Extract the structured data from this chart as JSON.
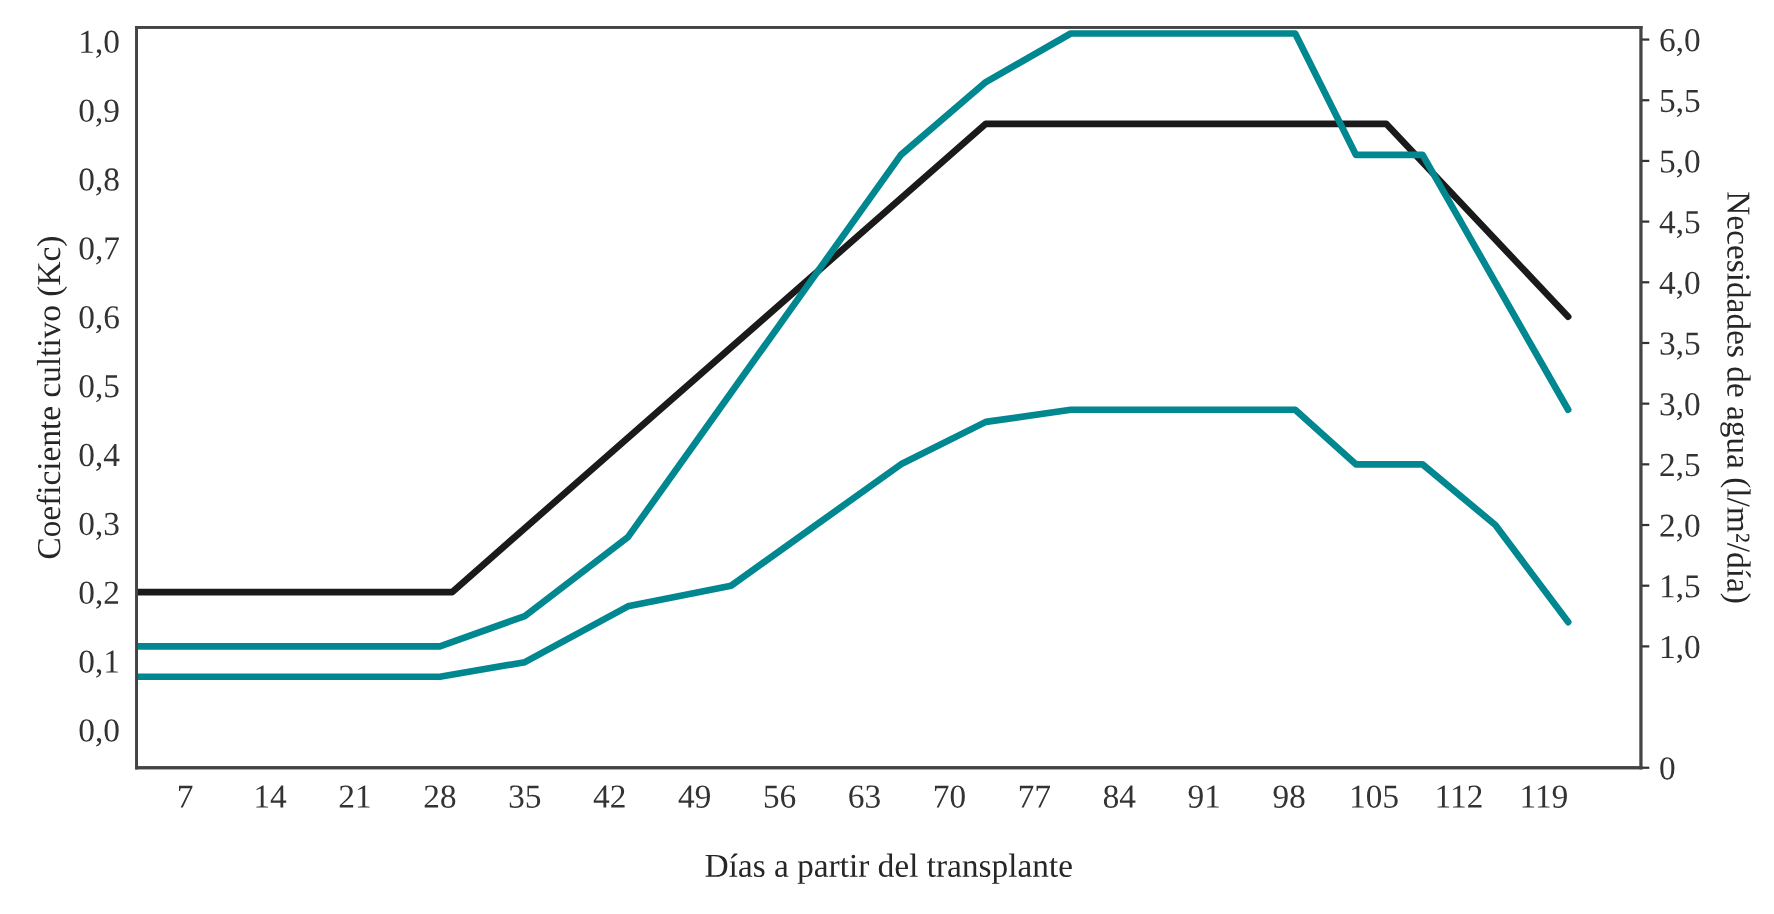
{
  "chart_data": {
    "type": "line",
    "xlabel": "Días a partir del transplante",
    "ylabel": "Coeficiente cultivo (Kc)",
    "y2label": "Necesidades de agua (l/m²/día)",
    "xlim": [
      3,
      127
    ],
    "xticks": [
      7,
      14,
      21,
      28,
      35,
      42,
      49,
      56,
      63,
      70,
      77,
      84,
      91,
      98,
      105,
      112,
      119
    ],
    "ylim": [
      -0.055,
      1.02
    ],
    "yticks": [
      {
        "value": 0.0,
        "label": "0,0"
      },
      {
        "value": 0.1,
        "label": "0,1"
      },
      {
        "value": 0.2,
        "label": "0,2"
      },
      {
        "value": 0.3,
        "label": "0,3"
      },
      {
        "value": 0.4,
        "label": "0,4"
      },
      {
        "value": 0.5,
        "label": "0,5"
      },
      {
        "value": 0.6,
        "label": "0,6"
      },
      {
        "value": 0.7,
        "label": "0,7"
      },
      {
        "value": 0.8,
        "label": "0,8"
      },
      {
        "value": 0.9,
        "label": "0,9"
      },
      {
        "value": 1.0,
        "label": "1,0"
      }
    ],
    "y2lim": [
      0,
      6.1
    ],
    "y2ticks": [
      0,
      {
        "value": 1.0,
        "label": "1,0"
      },
      {
        "value": 1.5,
        "label": "1,5"
      },
      {
        "value": 2.0,
        "label": "2,0"
      },
      {
        "value": 2.5,
        "label": "2,5"
      },
      {
        "value": 3.0,
        "label": "3,0"
      },
      {
        "value": 3.5,
        "label": "3,5"
      },
      {
        "value": 4.0,
        "label": "4,0"
      },
      {
        "value": 4.5,
        "label": "4,5"
      },
      {
        "value": 5.0,
        "label": "5,0"
      },
      {
        "value": 5.5,
        "label": "5,5"
      },
      {
        "value": 6.0,
        "label": "6,0"
      }
    ],
    "grid": false,
    "line_style": "solid",
    "series": [
      {
        "color": "#1a1a1a",
        "x": [
          3,
          29,
          73,
          106,
          121
        ],
        "values": [
          0.2,
          0.2,
          0.88,
          0.88,
          0.6
        ]
      },
      {
        "color": "#00878f",
        "axis": "y2",
        "x": [
          3,
          28,
          35,
          43.5,
          51,
          66,
          73,
          80,
          98.5,
          103.5,
          109,
          121
        ],
        "values": [
          1.0,
          1.0,
          1.25,
          1.9,
          2.95,
          5.05,
          5.65,
          6.05,
          6.05,
          5.05,
          5.05,
          2.95
        ]
      },
      {
        "color": "#00878f",
        "axis": "y2",
        "x": [
          3,
          28,
          35,
          43.5,
          52,
          59,
          66,
          73,
          80,
          98.5,
          103.5,
          109,
          115,
          121
        ],
        "values": [
          0.75,
          0.75,
          0.87,
          1.33,
          1.5,
          2.0,
          2.5,
          2.85,
          2.95,
          2.95,
          2.5,
          2.5,
          2.0,
          1.2
        ]
      }
    ]
  }
}
